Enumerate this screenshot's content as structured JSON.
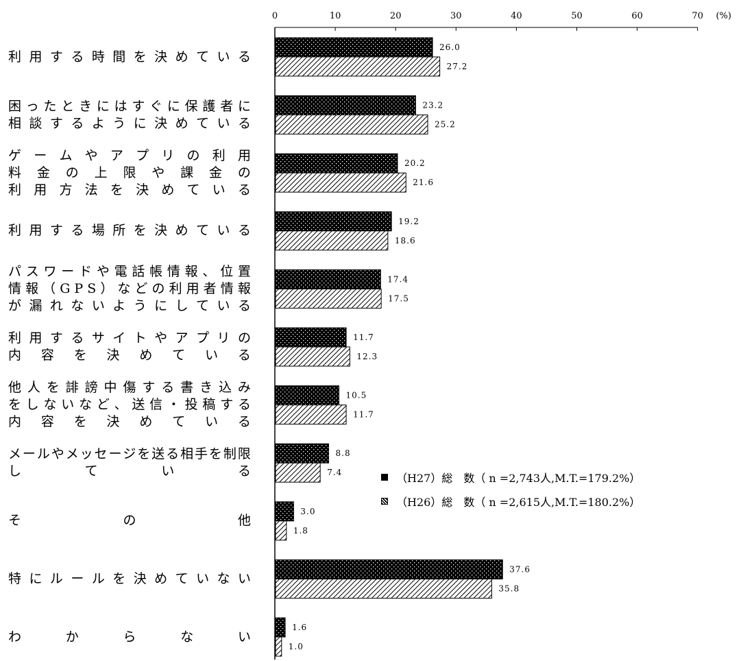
{
  "chart_data": {
    "type": "bar",
    "orientation": "horizontal",
    "categories": [
      [
        "利用する時間を決めている"
      ],
      [
        "困ったときにはすぐに保護者に",
        "相談するように決めている"
      ],
      [
        "ゲームやアプリの利用",
        "料金の上限や課金の",
        "利用方法を決めている"
      ],
      [
        "利用する場所を決めている"
      ],
      [
        "パスワードや電話帳情報、位置",
        "情報（GPS）などの利用者情報",
        "が漏れないようにしている"
      ],
      [
        "利用するサイトやアプリの",
        "内容を決めている"
      ],
      [
        "他人を誹謗中傷する書き込み",
        "をしないなど、送信・投稿する",
        "内容を決めている"
      ],
      [
        "メールやメッセージを送る相手を制限",
        "している"
      ],
      [
        "その他"
      ],
      [
        "特にルールを決めていない"
      ],
      [
        "わからない"
      ]
    ],
    "series": [
      {
        "name": "（H27）総　数（ n =2,743人,M.T.=179.2%）",
        "values": [
          26.0,
          23.2,
          20.2,
          19.2,
          17.4,
          11.7,
          10.5,
          8.8,
          3.0,
          37.6,
          1.6
        ],
        "labels": [
          "26.0",
          "23.2",
          "20.2",
          "19.2",
          "17.4",
          "11.7",
          "10.5",
          "8.8",
          "3.0",
          "37.6",
          "1.6"
        ],
        "pattern": "dots-on-black"
      },
      {
        "name": "（H26）総　数（ n =2,615人,M.T.=180.2%）",
        "values": [
          27.2,
          25.2,
          21.6,
          18.6,
          17.5,
          12.3,
          11.7,
          7.4,
          1.8,
          35.8,
          1.0
        ],
        "labels": [
          "27.2",
          "25.2",
          "21.6",
          "18.6",
          "17.5",
          "12.3",
          "11.7",
          "7.4",
          "1.8",
          "35.8",
          "1.0"
        ],
        "pattern": "diagonal-hatch"
      }
    ],
    "xlim": [
      0,
      70
    ],
    "xticks": [
      "0",
      "10",
      "20",
      "30",
      "40",
      "50",
      "60",
      "70"
    ],
    "unit_label": "(%)",
    "legend_position": "lower-right",
    "grid": false
  }
}
